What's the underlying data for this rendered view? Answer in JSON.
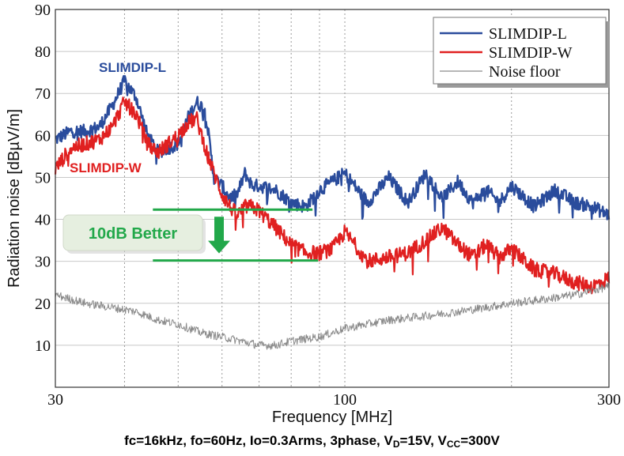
{
  "chart_data": {
    "type": "line",
    "x_scale": "log",
    "xlim": [
      30,
      300
    ],
    "ylim": [
      0,
      90
    ],
    "xticks": [
      30,
      100,
      300
    ],
    "yticks": [
      10,
      20,
      30,
      40,
      50,
      60,
      70,
      80,
      90
    ],
    "xlabel": "Frequency [MHz]",
    "ylabel": "Radiation noise [dBµV/m]",
    "grid": true,
    "legend_position": "top-right",
    "series": [
      {
        "name": "SLIMDIP-L",
        "color": "#2a4c9c",
        "x": [
          30,
          32,
          34,
          36,
          38,
          40,
          42,
          44,
          46,
          48,
          50,
          52,
          54,
          56,
          58,
          60,
          62,
          64,
          66,
          68,
          70,
          75,
          80,
          85,
          90,
          95,
          100,
          110,
          120,
          130,
          140,
          150,
          160,
          170,
          180,
          190,
          200,
          220,
          240,
          260,
          280,
          300
        ],
        "y": [
          59,
          61,
          61,
          62,
          67,
          73,
          69,
          60,
          56,
          57,
          58,
          64,
          68,
          66,
          50,
          48,
          45,
          46,
          51,
          48,
          48,
          47,
          44,
          43,
          47,
          49,
          51,
          44,
          50,
          44,
          51,
          45,
          49,
          44,
          47,
          44,
          48,
          43,
          47,
          44,
          43,
          41
        ]
      },
      {
        "name": "SLIMDIP-W",
        "color": "#e02020",
        "x": [
          30,
          32,
          34,
          36,
          38,
          40,
          42,
          44,
          46,
          48,
          50,
          52,
          54,
          56,
          58,
          60,
          62,
          64,
          66,
          68,
          70,
          75,
          80,
          85,
          90,
          95,
          100,
          110,
          120,
          130,
          140,
          150,
          160,
          170,
          180,
          190,
          200,
          220,
          240,
          260,
          280,
          300
        ],
        "y": [
          52,
          57,
          58,
          59,
          62,
          68,
          65,
          58,
          56,
          58,
          60,
          63,
          64,
          57,
          51,
          46,
          43,
          41,
          43,
          43,
          42,
          38,
          34,
          32,
          32,
          33,
          37,
          30,
          31,
          32,
          35,
          38,
          34,
          31,
          34,
          31,
          33,
          28,
          27,
          25,
          24,
          26
        ]
      },
      {
        "name": "Noise floor",
        "color": "#8a8a8a",
        "x": [
          30,
          34,
          38,
          42,
          46,
          50,
          55,
          60,
          65,
          70,
          75,
          80,
          90,
          100,
          120,
          140,
          160,
          180,
          200,
          230,
          260,
          300
        ],
        "y": [
          22,
          20,
          19,
          18,
          16,
          15,
          13,
          12,
          11,
          10,
          10,
          11,
          12,
          14,
          16,
          17,
          18,
          19,
          20,
          21,
          22,
          24
        ]
      }
    ],
    "annotations": {
      "label_l": "SLIMDIP-L",
      "label_w": "SLIMDIP-W",
      "better_label": "10dB Better",
      "level_upper": 42.5,
      "level_lower": 30,
      "line_x_range": [
        50,
        88
      ],
      "colors": {
        "better": "#22a84a",
        "better_bg": "#e6efe0"
      }
    }
  },
  "footer": {
    "conditions": "fc=16kHz, fo=60Hz, Io=0.3Arms, 3phase, V",
    "vd_sub": "D",
    "vd_value": "=15V, V",
    "vcc_sub": "CC",
    "vcc_value": "=300V"
  }
}
